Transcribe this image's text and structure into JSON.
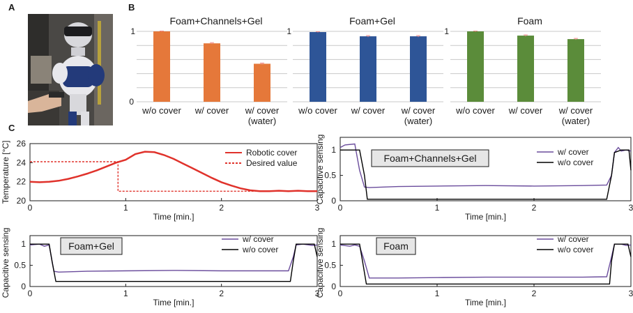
{
  "panel_labels": {
    "a": "A",
    "b": "B",
    "c": "C"
  },
  "colors": {
    "orange": "#E5783A",
    "blue": "#2E5597",
    "green": "#5B8C3A",
    "temp_red": "#E0322B",
    "purple": "#6A4C9C",
    "black": "#000000",
    "errbar": "#F08A8A",
    "grid": "#C8C8C8"
  },
  "photo": {
    "icon": "robot-photo-icon"
  },
  "chart_data": [
    {
      "type": "bar",
      "title": "Foam+Channels+Gel",
      "categories": [
        "w/o cover",
        "w/ cover",
        "w/ cover\n(water)"
      ],
      "values": [
        1.0,
        0.83,
        0.54
      ],
      "errors": [
        0.005,
        0.01,
        0.01
      ],
      "ylim": [
        0,
        1
      ],
      "yticks": [
        "0",
        "1"
      ],
      "color": "#E5783A",
      "grid": true
    },
    {
      "type": "bar",
      "title": "Foam+Gel",
      "categories": [
        "w/o cover",
        "w/ cover",
        "w/ cover\n(water)"
      ],
      "values": [
        0.99,
        0.93,
        0.93
      ],
      "errors": [
        0.005,
        0.01,
        0.01
      ],
      "ylim": [
        0,
        1
      ],
      "yticks": [
        "1"
      ],
      "color": "#2E5597",
      "grid": true
    },
    {
      "type": "bar",
      "title": "Foam",
      "categories": [
        "w/o cover",
        "w/ cover",
        "w/ cover\n(water)"
      ],
      "values": [
        1.0,
        0.94,
        0.89
      ],
      "errors": [
        0.005,
        0.01,
        0.01
      ],
      "ylim": [
        0,
        1
      ],
      "yticks": [
        "1"
      ],
      "color": "#5B8C3A",
      "grid": true
    },
    {
      "type": "line",
      "xlabel": "Time [min.]",
      "ylabel": "Temperature [°C]",
      "xlim": [
        0,
        3
      ],
      "ylim": [
        20,
        26
      ],
      "xticks": [
        0,
        1,
        2,
        3
      ],
      "yticks": [
        20,
        22,
        24,
        26
      ],
      "legend": "top-right",
      "series": [
        {
          "name": "Robotic cover",
          "style": "solid",
          "color": "#E0322B",
          "x": [
            0,
            0.1,
            0.2,
            0.3,
            0.4,
            0.5,
            0.6,
            0.7,
            0.8,
            0.9,
            1.0,
            1.1,
            1.2,
            1.3,
            1.4,
            1.5,
            1.6,
            1.7,
            1.8,
            1.9,
            2.0,
            2.1,
            2.2,
            2.3,
            2.4,
            2.5,
            2.6,
            2.7,
            2.8,
            2.9,
            3.0
          ],
          "y": [
            22.0,
            21.95,
            22.0,
            22.1,
            22.3,
            22.55,
            22.85,
            23.2,
            23.6,
            24.0,
            24.3,
            24.9,
            25.15,
            25.1,
            24.8,
            24.4,
            23.9,
            23.4,
            22.9,
            22.4,
            21.95,
            21.6,
            21.3,
            21.1,
            21.0,
            21.0,
            21.05,
            21.0,
            21.05,
            21.0,
            21.0
          ]
        },
        {
          "name": "Desired value",
          "style": "dashed",
          "color": "#E0322B",
          "x": [
            0,
            0.92,
            0.92,
            2.45
          ],
          "y": [
            24.1,
            24.1,
            21.0,
            21.0
          ]
        }
      ]
    },
    {
      "type": "line",
      "annotation": "Foam+Channels+Gel",
      "xlabel": "Time [min.]",
      "ylabel": "Capacitive sensing",
      "xlim": [
        0,
        3
      ],
      "ylim": [
        0,
        1.25
      ],
      "xticks": [
        0,
        1,
        2,
        3
      ],
      "yticks": [
        0,
        0.5,
        1
      ],
      "ytick_labels": [
        "0",
        "0.5",
        "1"
      ],
      "legend": "top-right",
      "series": [
        {
          "name": "w/ cover",
          "color": "#6A4C9C",
          "x": [
            0,
            0.05,
            0.15,
            0.2,
            0.25,
            0.3,
            0.6,
            1.0,
            1.5,
            2.0,
            2.5,
            2.75,
            2.8,
            2.83,
            2.87,
            2.9,
            2.95,
            3.0
          ],
          "y": [
            1.05,
            1.1,
            1.12,
            0.6,
            0.27,
            0.26,
            0.28,
            0.29,
            0.3,
            0.29,
            0.3,
            0.31,
            0.5,
            0.95,
            1.05,
            0.98,
            1.0,
            0.98
          ]
        },
        {
          "name": "w/o cover",
          "color": "#000000",
          "x": [
            0,
            0.2,
            0.25,
            0.28,
            0.3,
            1.0,
            2.0,
            2.75,
            2.8,
            2.83,
            2.9,
            2.98,
            3.0
          ],
          "y": [
            1.0,
            1.0,
            0.5,
            0.03,
            0.03,
            0.03,
            0.03,
            0.03,
            0.5,
            0.95,
            1.0,
            1.0,
            0.6
          ]
        }
      ]
    },
    {
      "type": "line",
      "annotation": "Foam+Gel",
      "xlabel": "Time [min.]",
      "ylabel": "Capacitive sensing",
      "xlim": [
        0,
        3
      ],
      "ylim": [
        0,
        1.2
      ],
      "xticks": [
        0,
        1,
        2,
        3
      ],
      "yticks": [
        0,
        0.5,
        1
      ],
      "ytick_labels": [
        "0",
        "0.5",
        "1"
      ],
      "legend": "top-right",
      "series": [
        {
          "name": "w/ cover",
          "color": "#6A4C9C",
          "x": [
            0,
            0.1,
            0.15,
            0.2,
            0.25,
            0.3,
            0.6,
            1.0,
            1.5,
            2.0,
            2.5,
            2.7,
            2.75,
            2.78,
            2.85,
            2.95,
            3.0
          ],
          "y": [
            0.98,
            1.0,
            0.95,
            0.98,
            0.36,
            0.34,
            0.36,
            0.37,
            0.38,
            0.37,
            0.37,
            0.37,
            0.7,
            0.98,
            1.0,
            0.97,
            0.98
          ]
        },
        {
          "name": "w/o cover",
          "color": "#000000",
          "x": [
            0,
            0.2,
            0.23,
            0.27,
            0.3,
            1.0,
            2.0,
            2.72,
            2.75,
            2.78,
            2.85,
            2.97,
            3.0
          ],
          "y": [
            1.0,
            1.0,
            0.6,
            0.12,
            0.12,
            0.12,
            0.12,
            0.12,
            0.6,
            1.0,
            1.0,
            1.0,
            0.7
          ]
        }
      ]
    },
    {
      "type": "line",
      "annotation": "Foam",
      "xlabel": "Time [min.]",
      "ylabel": "Capacitive sensing",
      "xlim": [
        0,
        3
      ],
      "ylim": [
        0,
        1.2
      ],
      "xticks": [
        0,
        1,
        2,
        3
      ],
      "yticks": [
        0,
        0.5,
        1
      ],
      "ytick_labels": [
        "0",
        "0.5",
        "1"
      ],
      "legend": "top-right",
      "series": [
        {
          "name": "w/ cover",
          "color": "#6A4C9C",
          "x": [
            0,
            0.1,
            0.15,
            0.2,
            0.25,
            0.3,
            0.6,
            1.0,
            1.5,
            2.0,
            2.5,
            2.75,
            2.8,
            2.83,
            2.9,
            2.95,
            3.0
          ],
          "y": [
            0.98,
            0.95,
            0.98,
            0.95,
            0.6,
            0.2,
            0.2,
            0.21,
            0.22,
            0.22,
            0.22,
            0.23,
            0.7,
            1.0,
            1.0,
            0.97,
            0.98
          ]
        },
        {
          "name": "w/o cover",
          "color": "#000000",
          "x": [
            0,
            0.2,
            0.23,
            0.27,
            0.3,
            1.0,
            2.0,
            2.78,
            2.8,
            2.83,
            2.9,
            2.97,
            3.0
          ],
          "y": [
            1.0,
            1.0,
            0.6,
            0.06,
            0.06,
            0.06,
            0.06,
            0.06,
            0.6,
            1.0,
            1.0,
            1.0,
            0.7
          ]
        }
      ]
    }
  ]
}
